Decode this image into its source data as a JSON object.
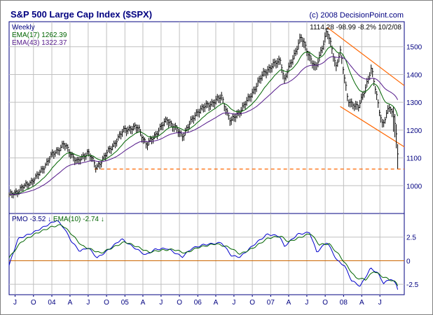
{
  "chart_data": [
    {
      "type": "line",
      "subtype": "weekly-hlc-bars",
      "title": "S&P 500 Large Cap Index ($SPX)",
      "source": "(c) 2008 DecisionPoint.com",
      "period": "Weekly",
      "last_quote": {
        "close": "1114.28",
        "change": "-98.99",
        "pct": "-8.2%",
        "date": "10/2/08"
      },
      "y_ticks": [
        1000,
        1100,
        1200,
        1300,
        1400,
        1500
      ],
      "ylim": [
        900,
        1590
      ],
      "x_start": "2003-06-01",
      "x_end": "2008-10-31",
      "x_ticks": [
        {
          "date": "2003-07-01",
          "label": "J"
        },
        {
          "date": "2003-10-01",
          "label": "O"
        },
        {
          "date": "2004-01-01",
          "label": "04"
        },
        {
          "date": "2004-04-01",
          "label": "A"
        },
        {
          "date": "2004-07-01",
          "label": "J"
        },
        {
          "date": "2004-10-01",
          "label": "O"
        },
        {
          "date": "2005-01-01",
          "label": "05"
        },
        {
          "date": "2005-04-01",
          "label": "A"
        },
        {
          "date": "2005-07-01",
          "label": "J"
        },
        {
          "date": "2005-10-01",
          "label": "O"
        },
        {
          "date": "2006-01-01",
          "label": "06"
        },
        {
          "date": "2006-04-01",
          "label": "A"
        },
        {
          "date": "2006-07-01",
          "label": "J"
        },
        {
          "date": "2006-10-01",
          "label": "O"
        },
        {
          "date": "2007-01-01",
          "label": "07"
        },
        {
          "date": "2007-04-01",
          "label": "A"
        },
        {
          "date": "2007-07-01",
          "label": "J"
        },
        {
          "date": "2007-10-01",
          "label": "O"
        },
        {
          "date": "2008-01-01",
          "label": "08"
        },
        {
          "date": "2008-04-01",
          "label": "A"
        },
        {
          "date": "2008-07-01",
          "label": "J"
        }
      ],
      "price_anchors": [
        [
          "2003-06-01",
          965
        ],
        [
          "2003-08-01",
          990
        ],
        [
          "2003-10-15",
          1030
        ],
        [
          "2004-01-01",
          1110
        ],
        [
          "2004-03-01",
          1150
        ],
        [
          "2004-05-10",
          1085
        ],
        [
          "2004-07-01",
          1125
        ],
        [
          "2004-08-10",
          1065
        ],
        [
          "2004-10-01",
          1115
        ],
        [
          "2005-01-01",
          1205
        ],
        [
          "2005-03-10",
          1210
        ],
        [
          "2005-04-20",
          1145
        ],
        [
          "2005-08-01",
          1240
        ],
        [
          "2005-10-15",
          1180
        ],
        [
          "2006-01-01",
          1270
        ],
        [
          "2006-05-01",
          1320
        ],
        [
          "2006-06-15",
          1230
        ],
        [
          "2006-09-01",
          1300
        ],
        [
          "2006-12-01",
          1410
        ],
        [
          "2007-02-20",
          1455
        ],
        [
          "2007-03-10",
          1380
        ],
        [
          "2007-06-01",
          1535
        ],
        [
          "2007-08-15",
          1420
        ],
        [
          "2007-10-10",
          1560
        ],
        [
          "2007-11-25",
          1430
        ],
        [
          "2007-12-15",
          1490
        ],
        [
          "2008-01-22",
          1310
        ],
        [
          "2008-03-15",
          1280
        ],
        [
          "2008-05-20",
          1420
        ],
        [
          "2008-07-15",
          1215
        ],
        [
          "2008-08-20",
          1290
        ],
        [
          "2008-09-15",
          1230
        ],
        [
          "2008-10-02",
          1114
        ]
      ],
      "series": [
        {
          "name": "EMA(17)",
          "label": "1262.39",
          "color": "#006400"
        },
        {
          "name": "EMA(43)",
          "label": "1322.37",
          "color": "#551a8b"
        }
      ],
      "annotations": {
        "support_line": {
          "value": 1060,
          "color": "#ff6600"
        },
        "upper_channel": [
          [
            "2007-10-10",
            1570
          ],
          [
            "2008-10-31",
            1360
          ]
        ],
        "lower_channel": [
          [
            "2007-12-15",
            1285
          ],
          [
            "2008-10-31",
            1140
          ]
        ],
        "channel_color": "#ff6600"
      },
      "grid": true
    },
    {
      "type": "line",
      "title": "PMO",
      "y_ticks": [
        -2.5,
        0,
        2.5
      ],
      "ylim": [
        -3.6,
        5.0
      ],
      "zero_line_color": "#cc6600",
      "series": [
        {
          "name": "PMO",
          "label": "-3.52",
          "arrow": "down",
          "color": "#0000cc",
          "anchors": [
            [
              "2003-06-01",
              -0.5
            ],
            [
              "2003-07-15",
              2.3
            ],
            [
              "2003-10-01",
              3.0
            ],
            [
              "2003-12-20",
              3.9
            ],
            [
              "2004-01-25",
              4.3
            ],
            [
              "2004-03-01",
              3.5
            ],
            [
              "2004-04-10",
              2.0
            ],
            [
              "2004-05-20",
              1.0
            ],
            [
              "2004-07-01",
              1.4
            ],
            [
              "2004-08-15",
              0.3
            ],
            [
              "2004-10-01",
              1.0
            ],
            [
              "2004-12-15",
              2.3
            ],
            [
              "2005-02-01",
              1.6
            ],
            [
              "2005-04-15",
              0.6
            ],
            [
              "2005-06-01",
              1.2
            ],
            [
              "2005-08-01",
              1.3
            ],
            [
              "2005-10-15",
              0.4
            ],
            [
              "2005-12-01",
              1.3
            ],
            [
              "2006-02-01",
              1.7
            ],
            [
              "2006-05-01",
              1.9
            ],
            [
              "2006-06-20",
              0.5
            ],
            [
              "2006-08-01",
              0.4
            ],
            [
              "2006-10-15",
              1.8
            ],
            [
              "2006-12-15",
              2.8
            ],
            [
              "2007-02-15",
              2.6
            ],
            [
              "2007-03-10",
              1.5
            ],
            [
              "2007-05-15",
              2.8
            ],
            [
              "2007-07-15",
              3.0
            ],
            [
              "2007-08-20",
              0.9
            ],
            [
              "2007-10-10",
              2.0
            ],
            [
              "2007-11-30",
              0.0
            ],
            [
              "2008-01-05",
              -0.5
            ],
            [
              "2008-02-10",
              -2.1
            ],
            [
              "2008-03-25",
              -2.7
            ],
            [
              "2008-05-15",
              -0.8
            ],
            [
              "2008-06-20",
              -1.3
            ],
            [
              "2008-07-20",
              -2.4
            ],
            [
              "2008-08-25",
              -1.9
            ],
            [
              "2008-09-25",
              -2.6
            ],
            [
              "2008-10-02",
              -3.52
            ]
          ]
        },
        {
          "name": "EMA(10)",
          "label": "-2.74",
          "arrow": "down",
          "color": "#006400",
          "anchors": [
            [
              "2003-06-01",
              0.3
            ],
            [
              "2003-08-01",
              2.0
            ],
            [
              "2003-10-15",
              2.9
            ],
            [
              "2004-01-01",
              3.6
            ],
            [
              "2004-02-20",
              3.8
            ],
            [
              "2004-04-01",
              3.0
            ],
            [
              "2004-05-30",
              1.6
            ],
            [
              "2004-07-15",
              1.2
            ],
            [
              "2004-09-01",
              0.8
            ],
            [
              "2004-11-01",
              1.4
            ],
            [
              "2005-01-01",
              2.0
            ],
            [
              "2005-03-01",
              1.5
            ],
            [
              "2005-05-01",
              0.9
            ],
            [
              "2005-07-01",
              1.1
            ],
            [
              "2005-09-01",
              1.2
            ],
            [
              "2005-11-01",
              0.8
            ],
            [
              "2006-01-01",
              1.4
            ],
            [
              "2006-04-01",
              1.8
            ],
            [
              "2006-06-10",
              1.4
            ],
            [
              "2006-08-01",
              0.7
            ],
            [
              "2006-10-01",
              1.3
            ],
            [
              "2006-12-20",
              2.4
            ],
            [
              "2007-02-20",
              2.6
            ],
            [
              "2007-04-01",
              2.0
            ],
            [
              "2007-06-01",
              2.5
            ],
            [
              "2007-07-20",
              2.9
            ],
            [
              "2007-09-01",
              1.7
            ],
            [
              "2007-10-20",
              1.8
            ],
            [
              "2007-12-10",
              0.6
            ],
            [
              "2008-01-20",
              -0.6
            ],
            [
              "2008-03-01",
              -1.8
            ],
            [
              "2008-04-20",
              -2.0
            ],
            [
              "2008-06-01",
              -1.1
            ],
            [
              "2008-07-15",
              -1.7
            ],
            [
              "2008-08-20",
              -2.0
            ],
            [
              "2008-09-20",
              -2.3
            ],
            [
              "2008-10-02",
              -2.74
            ]
          ]
        }
      ],
      "grid": true
    }
  ],
  "colors": {
    "frame": "#000080",
    "grid": "#c0c0c0",
    "bars": "#000000",
    "page": "#ffffff"
  }
}
